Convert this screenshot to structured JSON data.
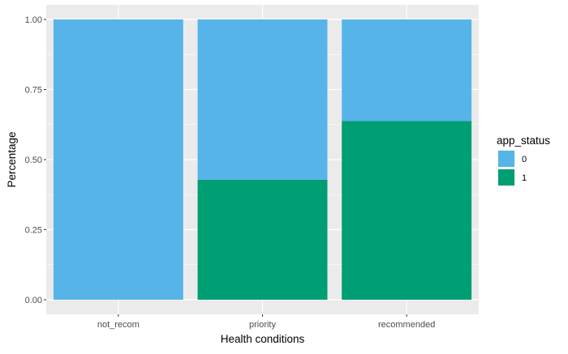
{
  "chart_data": {
    "type": "bar",
    "stacked": true,
    "categories": [
      "not_recom",
      "priority",
      "recommended"
    ],
    "series": [
      {
        "name": "0",
        "color": "#56B4E9",
        "values": [
          1.0,
          0.572,
          0.362
        ]
      },
      {
        "name": "1",
        "color": "#009E73",
        "values": [
          0.0,
          0.428,
          0.638
        ]
      }
    ],
    "title": "",
    "xlabel": "Health conditions",
    "ylabel": "Percentage",
    "ylim": [
      0,
      1
    ],
    "yticks": [
      "0.00",
      "0.25",
      "0.50",
      "0.75",
      "1.00"
    ],
    "grid": true,
    "legend": {
      "title": "app_status",
      "position": "right",
      "entries": [
        "0",
        "1"
      ]
    },
    "panel_background": "#EBEBEB",
    "grid_color": "#FFFFFF"
  }
}
